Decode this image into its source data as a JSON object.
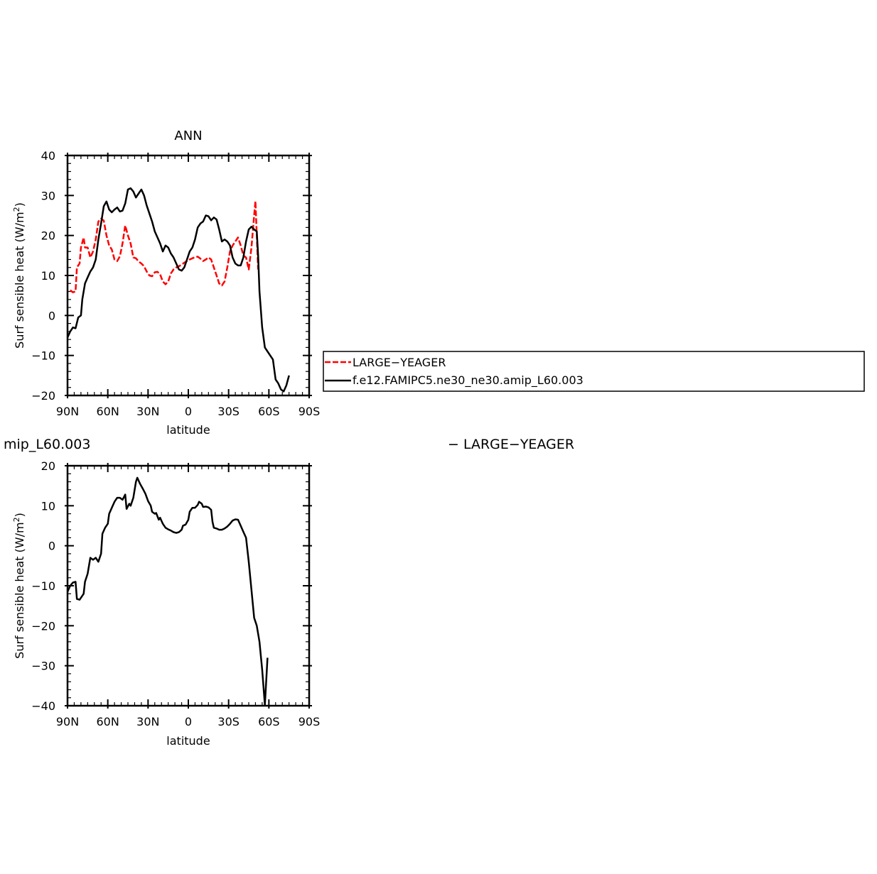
{
  "chart_data": [
    {
      "type": "line",
      "title": "ANN",
      "xlabel": "latitude",
      "ylabel_main": "Surf sensible heat (W/m",
      "ylabel_sup": "2",
      "ylabel_close": ")",
      "xlim": [
        90,
        -90
      ],
      "ylim": [
        -20,
        40
      ],
      "xticks": [
        {
          "v": 90,
          "label": "90N"
        },
        {
          "v": 60,
          "label": "60N"
        },
        {
          "v": 30,
          "label": "30N"
        },
        {
          "v": 0,
          "label": "0"
        },
        {
          "v": -30,
          "label": "30S"
        },
        {
          "v": -60,
          "label": "60S"
        },
        {
          "v": -90,
          "label": "90S"
        }
      ],
      "yticks": [
        {
          "v": -20,
          "label": "−20"
        },
        {
          "v": -10,
          "label": "−10"
        },
        {
          "v": 0,
          "label": "0"
        },
        {
          "v": 10,
          "label": "10"
        },
        {
          "v": 20,
          "label": "20"
        },
        {
          "v": 30,
          "label": "30"
        },
        {
          "v": 40,
          "label": "40"
        }
      ],
      "legend": {
        "placement": "right",
        "entries": [
          {
            "label": "LARGE−YEAGER",
            "series": 0
          },
          {
            "label": "f.e12.FAMIPC5.ne30_ne30.amip_L60.003",
            "series": 1
          }
        ]
      },
      "series": [
        {
          "name": "LARGE−YEAGER",
          "color": "#ff0000",
          "dash": "dashed",
          "points": [
            [
              88,
              6.3
            ],
            [
              86,
              5.8
            ],
            [
              84,
              6
            ],
            [
              83,
              12
            ],
            [
              81,
              13
            ],
            [
              80,
              17
            ],
            [
              78,
              19.5
            ],
            [
              77,
              17
            ],
            [
              75,
              17
            ],
            [
              73,
              14.5
            ],
            [
              71,
              16
            ],
            [
              69,
              19
            ],
            [
              67,
              23.5
            ],
            [
              65,
              24.2
            ],
            [
              63,
              23.7
            ],
            [
              61,
              20
            ],
            [
              59,
              17.5
            ],
            [
              57,
              16.5
            ],
            [
              55,
              14
            ],
            [
              53,
              13.6
            ],
            [
              51,
              14.8
            ],
            [
              49,
              18
            ],
            [
              47,
              22.5
            ],
            [
              45,
              20
            ],
            [
              43,
              18
            ],
            [
              41,
              14.5
            ],
            [
              39,
              14.3
            ],
            [
              37,
              13.5
            ],
            [
              35,
              13
            ],
            [
              33,
              12.3
            ],
            [
              31,
              11
            ],
            [
              29,
              10
            ],
            [
              27,
              9.8
            ],
            [
              25,
              10.8
            ],
            [
              23,
              10.9
            ],
            [
              21,
              10.3
            ],
            [
              19,
              8.5
            ],
            [
              17,
              7.8
            ],
            [
              15,
              8.5
            ],
            [
              13,
              10.5
            ],
            [
              11,
              11.5
            ],
            [
              9,
              12
            ],
            [
              7,
              12.3
            ],
            [
              5,
              12.7
            ],
            [
              3,
              13.2
            ],
            [
              1,
              13.6
            ],
            [
              -1,
              14
            ],
            [
              -3,
              14.3
            ],
            [
              -5,
              14.6
            ],
            [
              -7,
              14.7
            ],
            [
              -9,
              14.2
            ],
            [
              -11,
              13.6
            ],
            [
              -13,
              14
            ],
            [
              -15,
              14.5
            ],
            [
              -17,
              14
            ],
            [
              -19,
              12
            ],
            [
              -21,
              10
            ],
            [
              -23,
              8
            ],
            [
              -25,
              7.5
            ],
            [
              -27,
              8.5
            ],
            [
              -29,
              12
            ],
            [
              -31,
              16
            ],
            [
              -33,
              17.5
            ],
            [
              -35,
              18.5
            ],
            [
              -37,
              19.5
            ],
            [
              -39,
              17.5
            ],
            [
              -41,
              15
            ],
            [
              -43,
              14.5
            ],
            [
              -45,
              11.5
            ],
            [
              -47,
              17
            ],
            [
              -49,
              25
            ],
            [
              -50,
              28.6
            ],
            [
              -51,
              20
            ],
            [
              -52,
              11.5
            ]
          ]
        },
        {
          "name": "f.e12.FAMIPC5.ne30_ne30.amip_L60.003",
          "color": "#000000",
          "dash": "solid",
          "points": [
            [
              90,
              -5.5
            ],
            [
              88,
              -4
            ],
            [
              86,
              -3
            ],
            [
              84,
              -3.2
            ],
            [
              82,
              -0.5
            ],
            [
              80,
              0
            ],
            [
              79,
              4
            ],
            [
              77,
              8
            ],
            [
              75,
              9.5
            ],
            [
              73,
              11
            ],
            [
              71,
              12
            ],
            [
              69,
              14
            ],
            [
              67,
              19
            ],
            [
              65,
              23
            ],
            [
              63,
              27.3
            ],
            [
              61,
              28.5
            ],
            [
              59,
              26.5
            ],
            [
              57,
              25.8
            ],
            [
              55,
              26.5
            ],
            [
              53,
              27
            ],
            [
              51,
              26
            ],
            [
              49,
              26.2
            ],
            [
              47,
              28
            ],
            [
              45,
              31.5
            ],
            [
              43,
              31.8
            ],
            [
              41,
              31
            ],
            [
              39,
              29.5
            ],
            [
              37,
              30.5
            ],
            [
              35,
              31.5
            ],
            [
              33,
              30
            ],
            [
              31,
              27.5
            ],
            [
              29,
              25.5
            ],
            [
              27,
              23.5
            ],
            [
              25,
              21
            ],
            [
              23,
              19.5
            ],
            [
              21,
              18
            ],
            [
              19,
              16
            ],
            [
              17,
              17.5
            ],
            [
              15,
              17
            ],
            [
              13,
              15.5
            ],
            [
              11,
              14.5
            ],
            [
              9,
              13
            ],
            [
              7,
              11.5
            ],
            [
              5,
              11.2
            ],
            [
              3,
              12
            ],
            [
              1,
              14
            ],
            [
              -1,
              16
            ],
            [
              -3,
              17
            ],
            [
              -5,
              19
            ],
            [
              -7,
              22
            ],
            [
              -9,
              23
            ],
            [
              -11,
              23.5
            ],
            [
              -13,
              25
            ],
            [
              -15,
              24.8
            ],
            [
              -17,
              23.8
            ],
            [
              -19,
              24.5
            ],
            [
              -21,
              24
            ],
            [
              -23,
              21.5
            ],
            [
              -25,
              18.5
            ],
            [
              -27,
              19
            ],
            [
              -29,
              18.5
            ],
            [
              -31,
              17.5
            ],
            [
              -33,
              14.5
            ],
            [
              -35,
              13
            ],
            [
              -37,
              12.5
            ],
            [
              -39,
              12.5
            ],
            [
              -41,
              14.5
            ],
            [
              -43,
              18.5
            ],
            [
              -45,
              21.5
            ],
            [
              -47,
              22.2
            ],
            [
              -49,
              21.5
            ],
            [
              -51,
              21
            ],
            [
              -52,
              15
            ],
            [
              -53,
              6
            ],
            [
              -55,
              -3
            ],
            [
              -57,
              -8
            ],
            [
              -59,
              -9
            ],
            [
              -61,
              -10
            ],
            [
              -63,
              -11
            ],
            [
              -65,
              -16
            ],
            [
              -67,
              -17
            ],
            [
              -69,
              -18.5
            ],
            [
              -71,
              -19
            ],
            [
              -73,
              -17.5
            ],
            [
              -75,
              -15
            ]
          ]
        }
      ]
    },
    {
      "type": "line",
      "title": "mip_L60.003",
      "side_text": "− LARGE−YEAGER",
      "xlabel": "latitude",
      "ylabel_main": "Surf sensible heat (W/m",
      "ylabel_sup": "2",
      "ylabel_close": ")",
      "xlim": [
        90,
        -90
      ],
      "ylim": [
        -40,
        20
      ],
      "xticks": [
        {
          "v": 90,
          "label": "90N"
        },
        {
          "v": 60,
          "label": "60N"
        },
        {
          "v": 30,
          "label": "30N"
        },
        {
          "v": 0,
          "label": "0"
        },
        {
          "v": -30,
          "label": "30S"
        },
        {
          "v": -60,
          "label": "60S"
        },
        {
          "v": -90,
          "label": "90S"
        }
      ],
      "yticks": [
        {
          "v": -40,
          "label": "−40"
        },
        {
          "v": -30,
          "label": "−30"
        },
        {
          "v": -20,
          "label": "−20"
        },
        {
          "v": -10,
          "label": "−10"
        },
        {
          "v": 0,
          "label": "0"
        },
        {
          "v": 10,
          "label": "10"
        },
        {
          "v": 20,
          "label": "20"
        }
      ],
      "series": [
        {
          "color": "#000000",
          "dash": "solid",
          "points": [
            [
              90,
              -11.5
            ],
            [
              88,
              -10
            ],
            [
              86,
              -9.2
            ],
            [
              84,
              -9
            ],
            [
              83,
              -13.3
            ],
            [
              81,
              -13.5
            ],
            [
              80,
              -13
            ],
            [
              78,
              -12
            ],
            [
              77,
              -9
            ],
            [
              75,
              -7
            ],
            [
              73,
              -3
            ],
            [
              71,
              -3.5
            ],
            [
              69,
              -3
            ],
            [
              67,
              -4
            ],
            [
              65,
              -2
            ],
            [
              64,
              3
            ],
            [
              62,
              4.5
            ],
            [
              60,
              5.5
            ],
            [
              59,
              8
            ],
            [
              57,
              9.5
            ],
            [
              55,
              11
            ],
            [
              53,
              12
            ],
            [
              51,
              12
            ],
            [
              49,
              11.5
            ],
            [
              47,
              12.8
            ],
            [
              46,
              9.2
            ],
            [
              44,
              10.5
            ],
            [
              43,
              10
            ],
            [
              41,
              12
            ],
            [
              39,
              16
            ],
            [
              38,
              17
            ],
            [
              36,
              15.5
            ],
            [
              34,
              14.3
            ],
            [
              32,
              13
            ],
            [
              30,
              11.2
            ],
            [
              28,
              10
            ],
            [
              27,
              8.5
            ],
            [
              25,
              8
            ],
            [
              24,
              8.2
            ],
            [
              22,
              6.5
            ],
            [
              21,
              7
            ],
            [
              19,
              5.5
            ],
            [
              17,
              4.5
            ],
            [
              15,
              4.1
            ],
            [
              13,
              3.8
            ],
            [
              11,
              3.4
            ],
            [
              9,
              3.2
            ],
            [
              7,
              3.4
            ],
            [
              5,
              4
            ],
            [
              4,
              5
            ],
            [
              2,
              5.3
            ],
            [
              0,
              6.5
            ],
            [
              -1,
              8.5
            ],
            [
              -3,
              9.5
            ],
            [
              -5,
              9.5
            ],
            [
              -7,
              10.2
            ],
            [
              -8,
              11
            ],
            [
              -10,
              10.5
            ],
            [
              -11,
              9.7
            ],
            [
              -13,
              9.8
            ],
            [
              -15,
              9.6
            ],
            [
              -17,
              9
            ],
            [
              -18,
              6
            ],
            [
              -19,
              4.5
            ],
            [
              -21,
              4.3
            ],
            [
              -23,
              4
            ],
            [
              -25,
              4
            ],
            [
              -27,
              4.3
            ],
            [
              -29,
              4.8
            ],
            [
              -31,
              5.5
            ],
            [
              -33,
              6.3
            ],
            [
              -35,
              6.6
            ],
            [
              -37,
              6.5
            ],
            [
              -39,
              5
            ],
            [
              -41,
              3.5
            ],
            [
              -43,
              2
            ],
            [
              -45,
              -4
            ],
            [
              -47,
              -11
            ],
            [
              -49,
              -18
            ],
            [
              -51,
              -20
            ],
            [
              -53,
              -24
            ],
            [
              -55,
              -31
            ],
            [
              -57,
              -39.8
            ],
            [
              -59,
              -28
            ]
          ]
        }
      ]
    }
  ]
}
